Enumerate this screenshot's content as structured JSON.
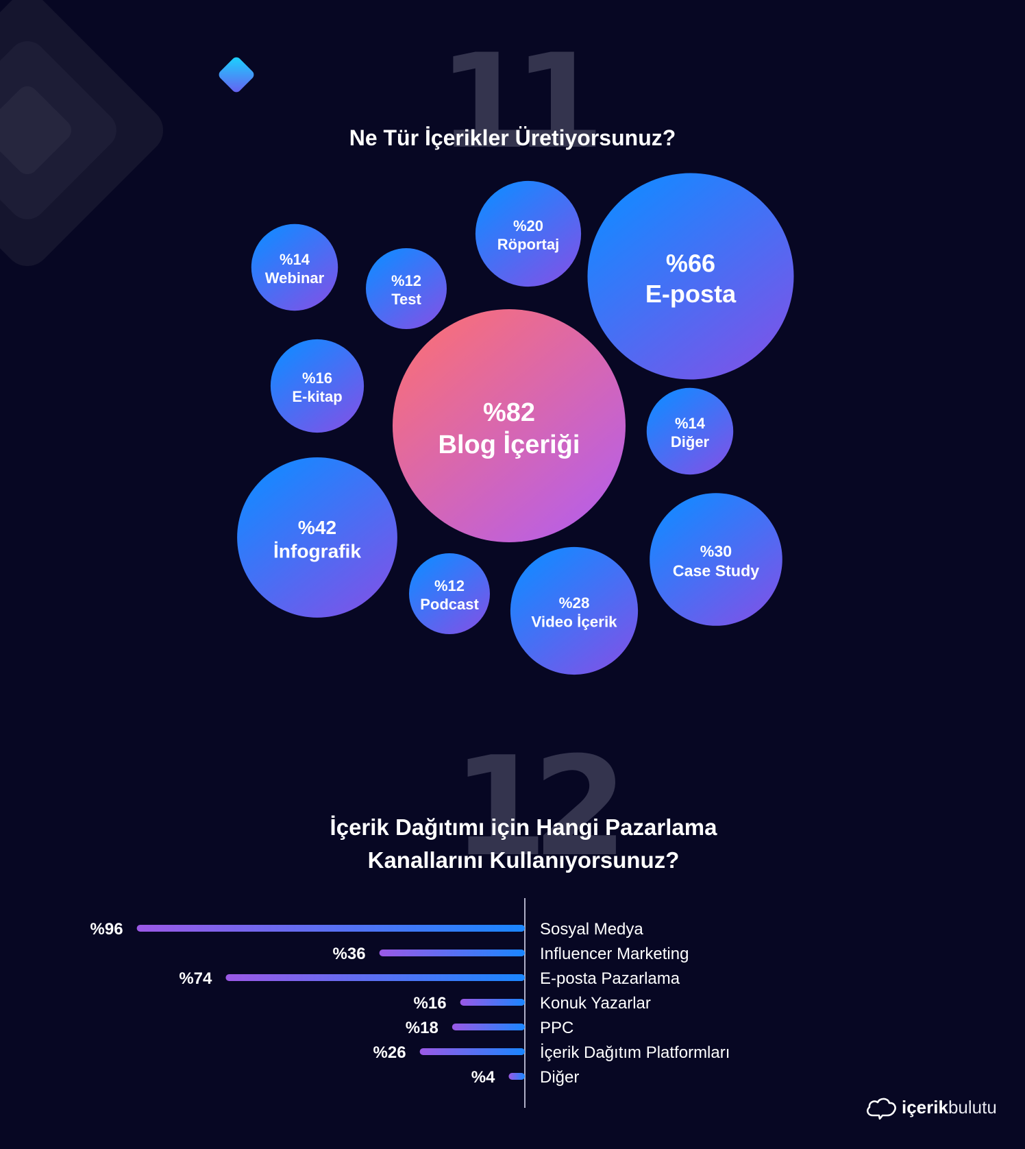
{
  "section_11": {
    "number": "11",
    "title": "Ne Tür İçerikler Üretiyorsunuz?"
  },
  "section_12": {
    "number": "12",
    "title_line1": "İçerik Dağıtımı için Hangi Pazarlama",
    "title_line2": "Kanallarını Kullanıyorsunuz?"
  },
  "brand": {
    "name_bold": "içerik",
    "name_light": "bulutu"
  },
  "colors": {
    "background": "#070723",
    "bubble_blue_start": "#1a86ff",
    "bubble_purple_end": "#7a55e8",
    "bubble_hero_start": "#f56e7e",
    "bubble_hero_end": "#b85fe6",
    "bar_start": "#9b59e6",
    "bar_end": "#1a86ff"
  },
  "chart_data": [
    {
      "type": "bubble",
      "title": "Ne Tür İçerikler Üretiyorsunuz?",
      "unit": "%",
      "items": [
        {
          "label": "Blog İçeriği",
          "value": 82,
          "value_text": "%82",
          "highlight": true
        },
        {
          "label": "E-posta",
          "value": 66,
          "value_text": "%66"
        },
        {
          "label": "İnfografik",
          "value": 42,
          "value_text": "%42"
        },
        {
          "label": "Case Study",
          "value": 30,
          "value_text": "%30"
        },
        {
          "label": "Video İçerik",
          "value": 28,
          "value_text": "%28"
        },
        {
          "label": "Röportaj",
          "value": 20,
          "value_text": "%20"
        },
        {
          "label": "E-kitap",
          "value": 16,
          "value_text": "%16"
        },
        {
          "label": "Webinar",
          "value": 14,
          "value_text": "%14"
        },
        {
          "label": "Diğer",
          "value": 14,
          "value_text": "%14"
        },
        {
          "label": "Test",
          "value": 12,
          "value_text": "%12"
        },
        {
          "label": "Podcast",
          "value": 12,
          "value_text": "%12"
        }
      ]
    },
    {
      "type": "bar",
      "orientation": "horizontal",
      "title": "İçerik Dağıtımı için Hangi Pazarlama Kanallarını Kullanıyorsunuz?",
      "unit": "%",
      "xlim": [
        0,
        100
      ],
      "categories": [
        "Sosyal Medya",
        "Influencer Marketing",
        "E-posta Pazarlama",
        "Konuk Yazarlar",
        "PPC",
        "İçerik Dağıtım Platformları",
        "Diğer"
      ],
      "values": [
        96,
        36,
        74,
        16,
        18,
        26,
        4
      ],
      "value_labels": [
        "%96",
        "%36",
        "%74",
        "%16",
        "%18",
        "%26",
        "%4"
      ]
    }
  ]
}
